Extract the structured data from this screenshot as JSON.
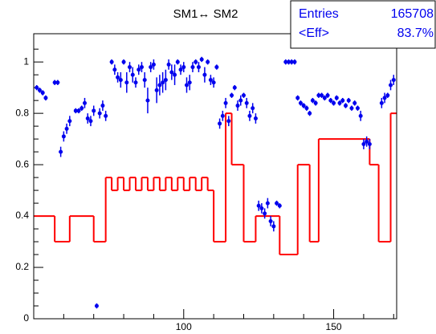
{
  "chart_data": {
    "type": "histogram",
    "title": "SM1↔ SM2",
    "stats": [
      {
        "name": "Entries",
        "value": 165708
      },
      {
        "name": "<Eff>",
        "value": 83.7,
        "label": "83.7%"
      }
    ],
    "xlim": [
      50,
      171
    ],
    "ylim": [
      0,
      1.11
    ],
    "xticks": [
      100,
      150
    ],
    "xticks_minor": [
      60,
      70,
      80,
      90,
      110,
      120,
      130,
      140,
      160,
      170
    ],
    "yticks": [
      0,
      0.2,
      0.4,
      0.6,
      0.8,
      1
    ],
    "yticks_minor": [
      0.05,
      0.1,
      0.15,
      0.25,
      0.3,
      0.35,
      0.45,
      0.5,
      0.55,
      0.65,
      0.7,
      0.75,
      0.85,
      0.9,
      0.95,
      1.05
    ],
    "color": "#ff0000",
    "bins": [
      50,
      57,
      62,
      70,
      74,
      76,
      78,
      80,
      82,
      84,
      86,
      88,
      90,
      92,
      94,
      96,
      98,
      100,
      102,
      104,
      106,
      108,
      110,
      114,
      116,
      120,
      124,
      132,
      138,
      142,
      145,
      162,
      165,
      169,
      171
    ],
    "values": [
      0.4,
      0.3,
      0.4,
      0.3,
      0.55,
      0.5,
      0.55,
      0.5,
      0.55,
      0.5,
      0.55,
      0.5,
      0.55,
      0.5,
      0.55,
      0.5,
      0.55,
      0.5,
      0.55,
      0.5,
      0.55,
      0.5,
      0.3,
      0.8,
      0.6,
      0.3,
      0.4,
      0.25,
      0.6,
      0.3,
      0.7,
      0.6,
      0.3,
      0.8
    ],
    "points": {
      "type": "scatter",
      "color": "#0000ee",
      "x": [
        51,
        52,
        53,
        54,
        57,
        58,
        59,
        60,
        61,
        62,
        64,
        65,
        66,
        67,
        68,
        69,
        70,
        71,
        72,
        73,
        74,
        76,
        77,
        78,
        79,
        80,
        81,
        82,
        83,
        84,
        85,
        86,
        87,
        88,
        89,
        90,
        91,
        92,
        93,
        94,
        95,
        96,
        97,
        98,
        99,
        100,
        101,
        102,
        103,
        104,
        105,
        106,
        107,
        108,
        109,
        110,
        111,
        112,
        113,
        114,
        115,
        116,
        117,
        118,
        119,
        120,
        121,
        122,
        123,
        124,
        125,
        126,
        127,
        128,
        129,
        130,
        131,
        132,
        134,
        135,
        136,
        137,
        138,
        139,
        140,
        141,
        142,
        143,
        144,
        145,
        146,
        147,
        148,
        149,
        150,
        151,
        152,
        153,
        154,
        155,
        156,
        157,
        158,
        159,
        160,
        161,
        162,
        166,
        167,
        168,
        169,
        170
      ],
      "values": [
        0.9,
        0.89,
        0.88,
        0.86,
        0.92,
        0.92,
        0.65,
        0.71,
        0.74,
        0.77,
        0.81,
        0.81,
        0.82,
        0.84,
        0.78,
        0.77,
        0.81,
        0.05,
        0.8,
        0.83,
        0.79,
        1.0,
        0.97,
        0.94,
        0.93,
        1.0,
        0.92,
        0.98,
        0.95,
        0.92,
        0.97,
        0.98,
        0.93,
        0.85,
        0.98,
        0.99,
        0.89,
        0.91,
        0.92,
        0.93,
        0.99,
        0.96,
        0.95,
        1.0,
        0.97,
        0.98,
        0.91,
        0.92,
        0.98,
        1.0,
        0.98,
        1.01,
        0.95,
        1.0,
        0.93,
        0.92,
        0.98,
        0.76,
        0.79,
        0.84,
        0.77,
        0.87,
        0.9,
        0.83,
        0.85,
        0.87,
        0.84,
        0.79,
        0.82,
        0.78,
        0.44,
        0.43,
        0.41,
        0.45,
        0.38,
        0.36,
        0.45,
        0.44,
        1.0,
        1.0,
        1.0,
        1.0,
        0.86,
        0.84,
        0.83,
        0.82,
        0.8,
        0.85,
        0.84,
        0.87,
        0.87,
        0.86,
        0.87,
        0.85,
        0.84,
        0.86,
        0.84,
        0.85,
        0.83,
        0.85,
        0.82,
        0.84,
        0.82,
        0.79,
        0.68,
        0.69,
        0.68,
        0.84,
        0.86,
        0.87,
        0.91,
        0.93
      ],
      "errors": [
        0.01,
        0.01,
        0.01,
        0.01,
        0.01,
        0.01,
        0.02,
        0.02,
        0.02,
        0.02,
        0.01,
        0.01,
        0.01,
        0.02,
        0.02,
        0.02,
        0.02,
        0.01,
        0.02,
        0.02,
        0.02,
        0.01,
        0.02,
        0.02,
        0.03,
        0.01,
        0.04,
        0.02,
        0.03,
        0.02,
        0.02,
        0.02,
        0.03,
        0.05,
        0.02,
        0.02,
        0.05,
        0.04,
        0.04,
        0.04,
        0.02,
        0.03,
        0.04,
        0.01,
        0.02,
        0.02,
        0.03,
        0.03,
        0.02,
        0.01,
        0.02,
        0.01,
        0.03,
        0.01,
        0.02,
        0.02,
        0.01,
        0.02,
        0.02,
        0.02,
        0.02,
        0.01,
        0.01,
        0.02,
        0.02,
        0.01,
        0.02,
        0.02,
        0.02,
        0.02,
        0.02,
        0.02,
        0.02,
        0.02,
        0.02,
        0.02,
        0.01,
        0.01,
        0.01,
        0.01,
        0.01,
        0.01,
        0.01,
        0.01,
        0.01,
        0.01,
        0.01,
        0.01,
        0.01,
        0.01,
        0.01,
        0.01,
        0.01,
        0.01,
        0.01,
        0.01,
        0.01,
        0.01,
        0.01,
        0.01,
        0.01,
        0.01,
        0.01,
        0.02,
        0.02,
        0.02,
        0.02,
        0.02,
        0.02,
        0.01,
        0.02,
        0.02
      ]
    }
  }
}
